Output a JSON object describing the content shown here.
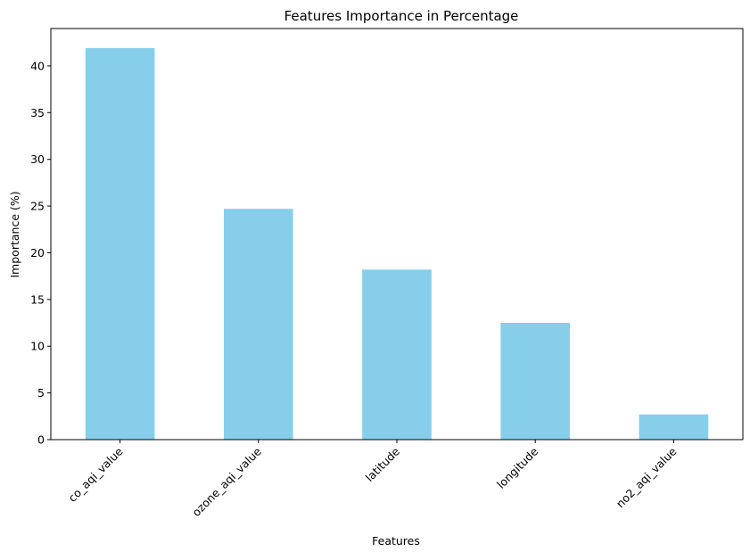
{
  "chart_data": {
    "type": "bar",
    "title": "Features Importance in Percentage",
    "xlabel": "Features",
    "ylabel": "Importance (%)",
    "categories": [
      "co_aqi_value",
      "ozone_aqi_value",
      "latitude",
      "longitude",
      "no2_aqi_value"
    ],
    "values": [
      41.9,
      24.7,
      18.2,
      12.5,
      2.7
    ],
    "ylim": [
      0,
      44
    ],
    "yticks": [
      0,
      5,
      10,
      15,
      20,
      25,
      30,
      35,
      40
    ],
    "grid": false,
    "legend": "none",
    "bar_color": "#87ceeb"
  }
}
